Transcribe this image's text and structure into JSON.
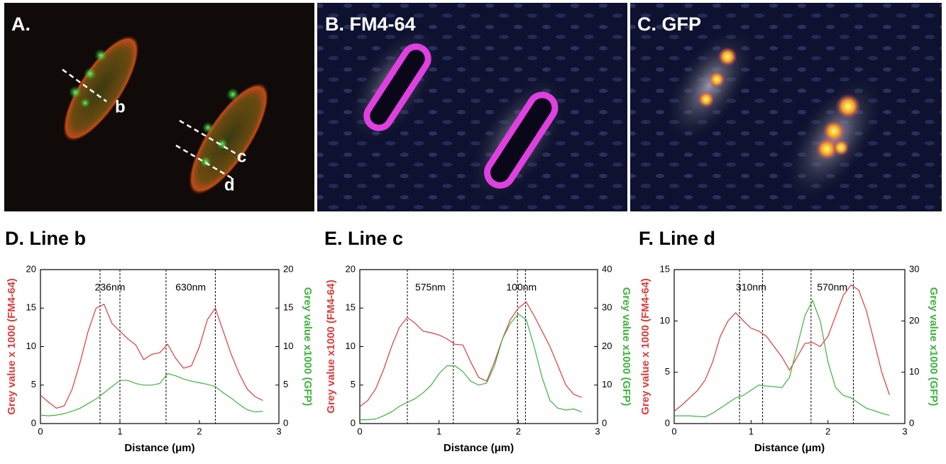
{
  "panels": [
    {
      "label": "A."
    },
    {
      "label": "B. FM4-64"
    },
    {
      "label": "C. GFP"
    }
  ],
  "line_labels": [
    "b",
    "c",
    "d"
  ],
  "chart_data": [
    {
      "type": "line",
      "title": "D. Line b",
      "xlabel": "Distance (μm)",
      "ylabel": "Grey value x 1000 (FM4-64)",
      "y2label": "Grey value x1000  (GFP)",
      "xlim": [
        0,
        3
      ],
      "xticks": [
        0,
        1,
        2,
        3
      ],
      "ylim": [
        0,
        20
      ],
      "yticks": [
        0,
        5,
        10,
        15,
        20
      ],
      "y2lim": [
        0,
        20
      ],
      "y2ticks": [
        0,
        5,
        10,
        15,
        20
      ],
      "vlines": [
        0.75,
        1.0,
        1.58,
        2.2
      ],
      "annotations": [
        "236nm",
        "630nm"
      ],
      "x": [
        0,
        0.1,
        0.2,
        0.3,
        0.4,
        0.5,
        0.6,
        0.7,
        0.8,
        0.9,
        1,
        1.1,
        1.2,
        1.3,
        1.4,
        1.5,
        1.6,
        1.7,
        1.8,
        1.9,
        2,
        2.1,
        2.2,
        2.3,
        2.4,
        2.5,
        2.6,
        2.7,
        2.8
      ],
      "series": [
        {
          "name": "FM4-64",
          "color": "#e03a3a",
          "values": [
            3.7,
            2.8,
            2.0,
            2.3,
            4.5,
            8,
            12,
            15,
            15.5,
            13,
            12,
            11,
            10.2,
            8.3,
            9.0,
            9.2,
            10.3,
            8.5,
            7.2,
            7.5,
            10,
            13.5,
            15,
            12,
            9,
            6.5,
            4.5,
            3.5,
            3.0
          ]
        },
        {
          "name": "GFP",
          "color": "#3cb43c",
          "axis": "y2",
          "values": [
            1.1,
            1,
            1.1,
            1.3,
            1.6,
            2,
            2.6,
            3.2,
            4,
            4.8,
            5.6,
            5.6,
            5.2,
            5,
            5,
            5.2,
            6.5,
            6.2,
            5.8,
            5.5,
            5.3,
            5.1,
            4.8,
            4,
            3.3,
            2.5,
            1.8,
            1.5,
            1.6
          ]
        }
      ]
    },
    {
      "type": "line",
      "title": "E. Line c",
      "xlabel": "Distance (μm)",
      "ylabel": "Grey value x1000 (FM4-64)",
      "y2label": "Grey value x1000  (GFP)",
      "xlim": [
        0,
        3
      ],
      "xticks": [
        0,
        1,
        2,
        3
      ],
      "ylim": [
        0,
        20
      ],
      "yticks": [
        0,
        5,
        10,
        15,
        20
      ],
      "y2lim": [
        0,
        40
      ],
      "y2ticks": [
        0,
        10,
        20,
        30,
        40
      ],
      "vlines": [
        0.6,
        1.18,
        1.99,
        2.09
      ],
      "annotations": [
        "575nm",
        "100nm"
      ],
      "x": [
        0,
        0.1,
        0.2,
        0.3,
        0.4,
        0.5,
        0.6,
        0.7,
        0.8,
        0.9,
        1,
        1.1,
        1.2,
        1.3,
        1.4,
        1.5,
        1.6,
        1.7,
        1.8,
        1.9,
        2,
        2.1,
        2.2,
        2.3,
        2.4,
        2.5,
        2.6,
        2.7,
        2.8
      ],
      "series": [
        {
          "name": "FM4-64",
          "color": "#e03a3a",
          "values": [
            2.2,
            3,
            4.5,
            7,
            10,
            12.5,
            13.8,
            13,
            12,
            11.8,
            11.5,
            11,
            10.3,
            10.2,
            8,
            6,
            5.5,
            8,
            11,
            13.5,
            15,
            15.8,
            14,
            12,
            10,
            7.5,
            5,
            3.8,
            3.4
          ]
        },
        {
          "name": "GFP",
          "color": "#3cb43c",
          "axis": "y2",
          "values": [
            1,
            1,
            1.2,
            2,
            3,
            4.5,
            5.5,
            6.5,
            8,
            10,
            13,
            15,
            15,
            13.5,
            11,
            10,
            10.5,
            15,
            22,
            26,
            28.5,
            27,
            20,
            12,
            6,
            4,
            3.5,
            3.8,
            3
          ]
        }
      ]
    },
    {
      "type": "line",
      "title": "F. Line d",
      "xlabel": "Distance (μm)",
      "ylabel": "Grey value x 1000 (FM4-64)",
      "y2label": "Grey value x1000  (GFP)",
      "xlim": [
        0,
        3
      ],
      "xticks": [
        0,
        1,
        2,
        3
      ],
      "ylim": [
        0,
        15
      ],
      "yticks": [
        0,
        5,
        10,
        15
      ],
      "y2lim": [
        0,
        30
      ],
      "y2ticks": [
        0,
        10,
        20,
        30
      ],
      "vlines": [
        0.85,
        1.15,
        1.78,
        2.33
      ],
      "annotations": [
        "310nm",
        "570nm"
      ],
      "x": [
        0,
        0.1,
        0.2,
        0.3,
        0.4,
        0.5,
        0.6,
        0.7,
        0.8,
        0.9,
        1,
        1.1,
        1.2,
        1.3,
        1.4,
        1.5,
        1.6,
        1.7,
        1.8,
        1.9,
        2,
        2.1,
        2.2,
        2.3,
        2.4,
        2.5,
        2.6,
        2.7,
        2.8
      ],
      "series": [
        {
          "name": "FM4-64",
          "color": "#e03a3a",
          "values": [
            1.2,
            1.8,
            2.5,
            3.2,
            4.2,
            6,
            8.5,
            10,
            10.8,
            10,
            9.3,
            9,
            8.5,
            7.5,
            6.5,
            5.2,
            6.5,
            7.8,
            7.9,
            7.5,
            8.5,
            10.5,
            12.5,
            13.5,
            13,
            11,
            8,
            5,
            2.8
          ]
        },
        {
          "name": "GFP",
          "color": "#3cb43c",
          "axis": "y2",
          "values": [
            1.5,
            1.5,
            1.5,
            1.4,
            1.3,
            2,
            3,
            4,
            5,
            5.5,
            6.5,
            7.5,
            7.3,
            7.2,
            7,
            9,
            15,
            21,
            24,
            20,
            12,
            7,
            5.5,
            5,
            4,
            3,
            2.5,
            2,
            1.6
          ]
        }
      ]
    }
  ]
}
